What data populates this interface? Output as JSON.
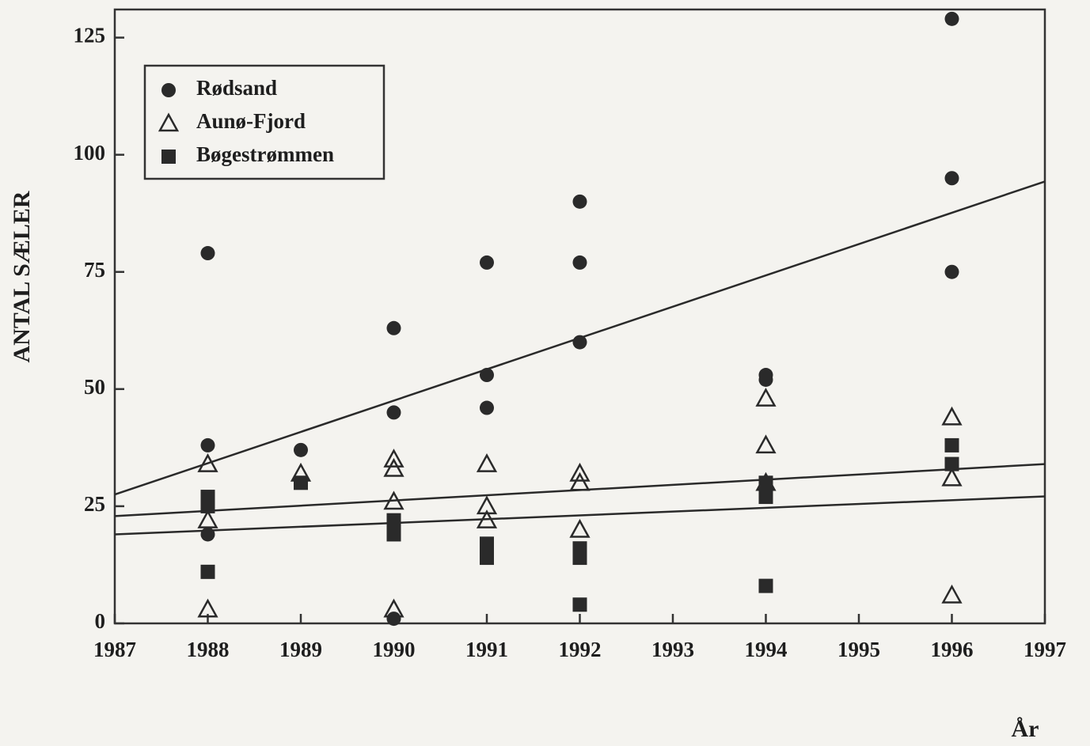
{
  "chart_data": {
    "type": "scatter",
    "ylabel": "ANTAL SÆLER",
    "xlabel": "År",
    "xlim": [
      1987,
      1997
    ],
    "xticks": [
      1987,
      1988,
      1989,
      1990,
      1991,
      1992,
      1993,
      1994,
      1995,
      1996,
      1997
    ],
    "ylim": [
      0,
      131
    ],
    "yticks": [
      0,
      25,
      50,
      75,
      100,
      125
    ],
    "legend": "top-left",
    "grid": false,
    "series": [
      {
        "name": "Rødsand",
        "marker": "circle",
        "color": "#2a2a2a",
        "x": [
          1988,
          1988,
          1988,
          1989,
          1990,
          1990,
          1990,
          1991,
          1991,
          1991,
          1992,
          1992,
          1992,
          1994,
          1994,
          1996,
          1996,
          1996
        ],
        "values": [
          79,
          38,
          19,
          37,
          63,
          45,
          1,
          77,
          53,
          46,
          90,
          77,
          60,
          53,
          52,
          129,
          95,
          75
        ],
        "trend": [
          27.5,
          94.3
        ]
      },
      {
        "name": "Aunø-Fjord",
        "marker": "triangle",
        "color": "#2a2a2a",
        "x": [
          1988,
          1988,
          1988,
          1989,
          1990,
          1990,
          1990,
          1990,
          1991,
          1991,
          1991,
          1992,
          1992,
          1992,
          1994,
          1994,
          1994,
          1996,
          1996,
          1996
        ],
        "values": [
          34,
          22,
          3,
          32,
          35,
          33,
          26,
          3,
          34,
          25,
          22,
          32,
          30,
          20,
          48,
          38,
          30,
          44,
          31,
          6
        ],
        "trend": [
          22.9,
          34
        ]
      },
      {
        "name": "Bøgestrømmen",
        "marker": "square",
        "color": "#2a2a2a",
        "x": [
          1988,
          1988,
          1988,
          1989,
          1990,
          1990,
          1991,
          1991,
          1991,
          1992,
          1992,
          1992,
          1994,
          1994,
          1994,
          1996,
          1996
        ],
        "values": [
          27,
          25,
          11,
          30,
          22,
          19,
          17,
          15,
          14,
          16,
          14,
          4,
          30,
          27,
          8,
          38,
          34
        ],
        "trend": [
          19,
          27.1
        ]
      }
    ]
  }
}
